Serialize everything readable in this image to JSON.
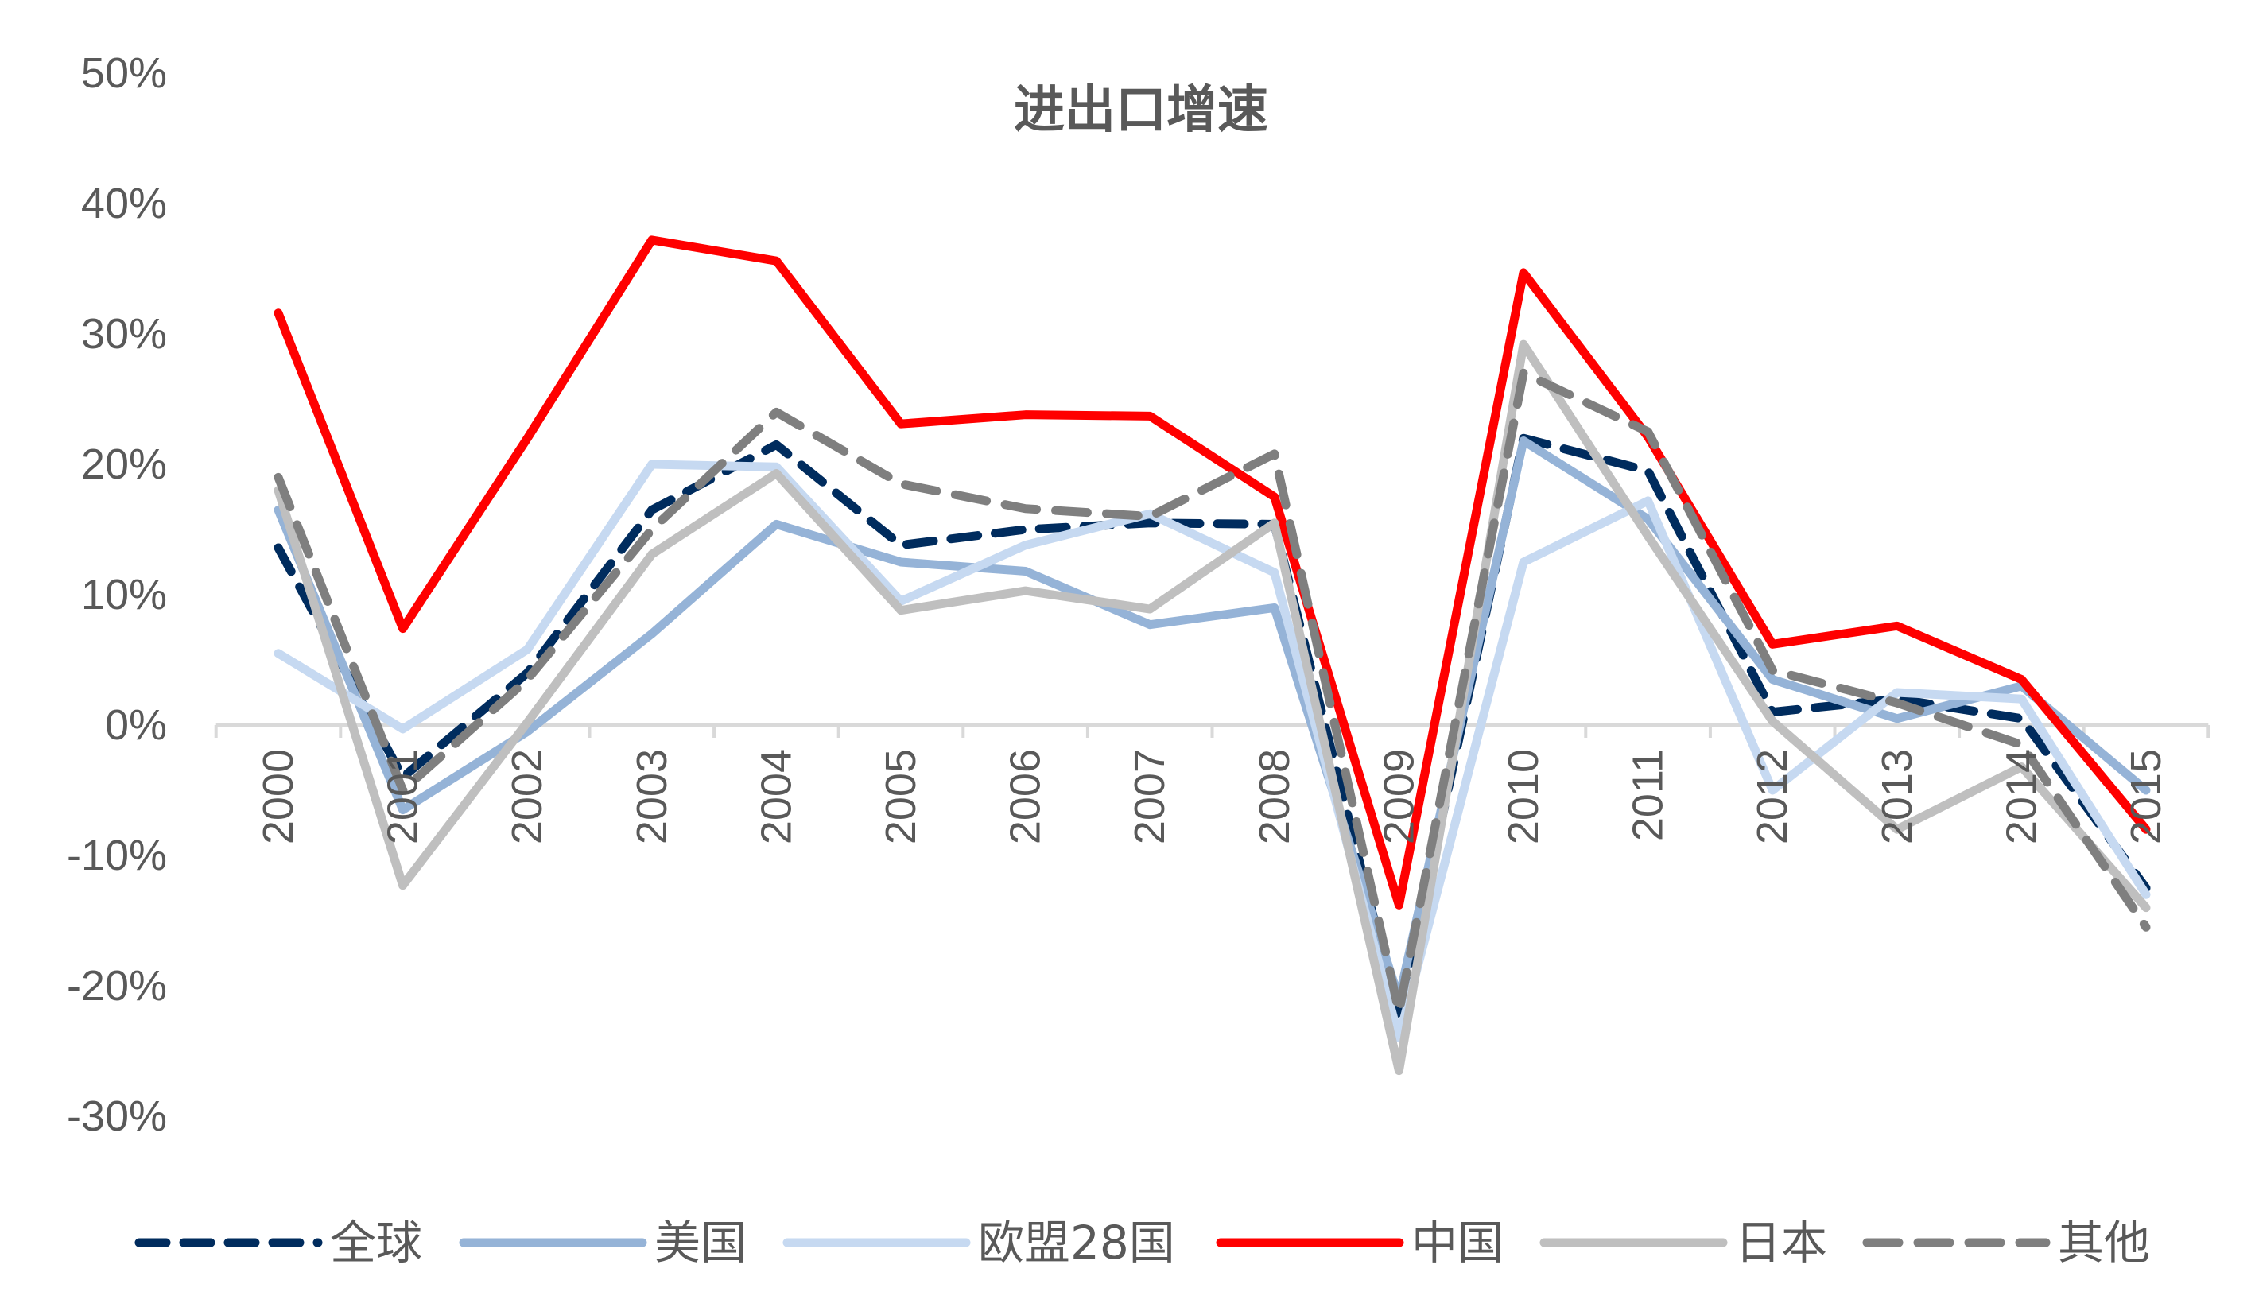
{
  "chart_data": {
    "type": "line",
    "title": "进出口增速",
    "xlabel": "",
    "ylabel": "",
    "categories": [
      "2000",
      "2001",
      "2002",
      "2003",
      "2004",
      "2005",
      "2006",
      "2007",
      "2008",
      "2009",
      "2010",
      "2011",
      "2012",
      "2013",
      "2014",
      "2015"
    ],
    "yticks": [
      "50%",
      "40%",
      "30%",
      "20%",
      "10%",
      "0%",
      "-10%",
      "-20%",
      "-30%"
    ],
    "ylim": [
      -30,
      50
    ],
    "grid": false,
    "legend_position": "bottom",
    "series": [
      {
        "name": "全球",
        "color": "#002C5E",
        "style": "dashed",
        "values": [
          13.6,
          -4,
          4,
          16.5,
          21.5,
          13.8,
          15,
          15.5,
          15.4,
          -22.5,
          22,
          19.5,
          1,
          2,
          0.5,
          -12.5
        ]
      },
      {
        "name": "美国",
        "color": "#95B3D7",
        "style": "solid",
        "values": [
          16.5,
          -6.5,
          -0.5,
          7,
          15.4,
          12.5,
          11.8,
          7.7,
          9,
          -21,
          21.8,
          15.8,
          3.5,
          0.5,
          3,
          -5
        ]
      },
      {
        "name": "欧盟28国",
        "color": "#C6D9F1",
        "style": "solid",
        "values": [
          5.5,
          -0.3,
          5.8,
          20,
          19.8,
          9.5,
          13.8,
          16.2,
          11.7,
          -24,
          12.5,
          17.2,
          -5,
          2.5,
          2,
          -13
        ]
      },
      {
        "name": "中国",
        "color": "#FF0000",
        "style": "solid",
        "values": [
          31.6,
          7.4,
          22,
          37.2,
          35.6,
          23.1,
          23.8,
          23.7,
          17.5,
          -13.8,
          34.7,
          22.1,
          6.2,
          7.6,
          3.5,
          -8
        ]
      },
      {
        "name": "日本",
        "color": "#BFBFBF",
        "style": "solid",
        "values": [
          18,
          -12.3,
          0.2,
          13.1,
          19.3,
          8.8,
          10.3,
          8.9,
          15.5,
          -26.5,
          29.2,
          14.5,
          0.3,
          -8,
          -3.2,
          -14
        ]
      },
      {
        "name": "其他",
        "color": "#7F7F7F",
        "style": "dashed",
        "values": [
          19,
          -5,
          3.5,
          15,
          24,
          18.5,
          16.6,
          16,
          20.8,
          -22,
          27,
          22.5,
          4.2,
          1.7,
          -1.5,
          -15.5
        ]
      }
    ]
  }
}
